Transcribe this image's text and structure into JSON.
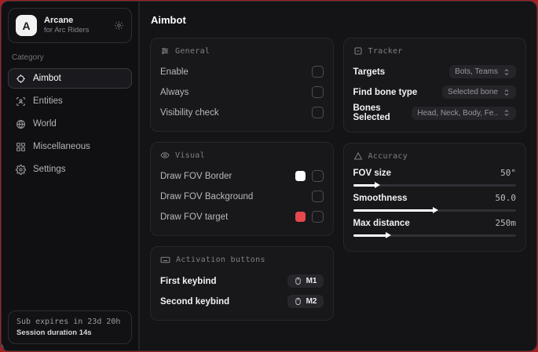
{
  "app": {
    "logo_letter": "A",
    "name": "Arcane",
    "subtitle": "for Arc Riders"
  },
  "sidebar": {
    "category_label": "Category",
    "items": [
      {
        "label": "Aimbot",
        "icon": "crosshair-icon",
        "active": true
      },
      {
        "label": "Entities",
        "icon": "entities-icon",
        "active": false
      },
      {
        "label": "World",
        "icon": "globe-icon",
        "active": false
      },
      {
        "label": "Miscellaneous",
        "icon": "grid-icon",
        "active": false
      },
      {
        "label": "Settings",
        "icon": "gear-icon",
        "active": false
      }
    ],
    "footer": {
      "line1": "Sub expires in 23d 20h",
      "line2": "Session duration 14s"
    }
  },
  "main": {
    "title": "Aimbot",
    "sections": {
      "general": {
        "title": "General",
        "rows": [
          {
            "label": "Enable",
            "checked": false
          },
          {
            "label": "Always",
            "checked": false
          },
          {
            "label": "Visibility check",
            "checked": false
          }
        ]
      },
      "visual": {
        "title": "Visual",
        "rows": [
          {
            "label": "Draw FOV Border",
            "swatch": "#ffffff",
            "checked": false
          },
          {
            "label": "Draw FOV Background",
            "swatch": null,
            "checked": false
          },
          {
            "label": "Draw FOV target",
            "swatch": "#e5484d",
            "checked": false
          }
        ]
      },
      "activation": {
        "title": "Activation buttons",
        "rows": [
          {
            "label": "First keybind",
            "key": "M1"
          },
          {
            "label": "Second keybind",
            "key": "M2"
          }
        ]
      },
      "tracker": {
        "title": "Tracker",
        "rows": [
          {
            "label": "Targets",
            "value": "Bots, Teams"
          },
          {
            "label": "Find bone type",
            "value": "Selected bone"
          },
          {
            "label": "Bones Selected",
            "value": "Head, Neck, Body, Fe.."
          }
        ]
      },
      "accuracy": {
        "title": "Accuracy",
        "rows": [
          {
            "label": "FOV size",
            "value": "50°",
            "percent": 14
          },
          {
            "label": "Smoothness",
            "value": "50.0",
            "percent": 50
          },
          {
            "label": "Max distance",
            "value": "250m",
            "percent": 21
          }
        ]
      }
    }
  },
  "colors": {
    "background_red": "#a32125",
    "fov_border_swatch": "#ffffff",
    "fov_target_swatch": "#e5484d"
  }
}
